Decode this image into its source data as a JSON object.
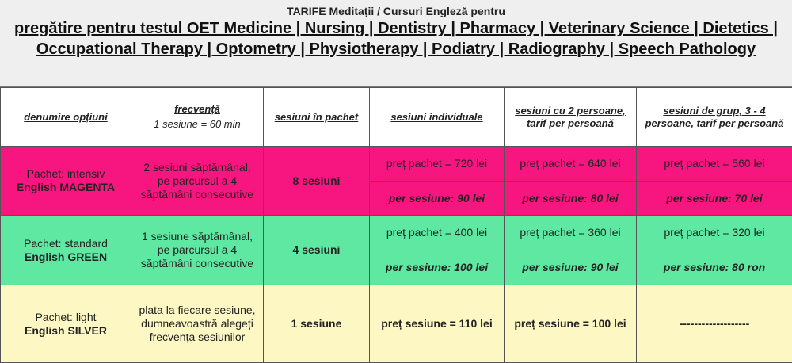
{
  "header": {
    "title": "TARIFE Meditații / Cursuri Engleză pentru",
    "subtitle": "pregătire pentru testul OET  Medicine | Nursing | Dentistry | Pharmacy | Veterinary Science | Dietetics | Occupational Therapy | Optometry | Physiotherapy | Podiatry | Radiography | Speech Pathology"
  },
  "table": {
    "columns": [
      {
        "title": "denumire opțiuni"
      },
      {
        "title": "frecvență",
        "note": "1 sesiune = 60 min"
      },
      {
        "title": "sesiuni în pachet"
      },
      {
        "title": "sesiuni individuale"
      },
      {
        "title": "sesiuni cu 2 persoane, tarif per persoană"
      },
      {
        "title": "sesiuni de grup, 3 - 4 persoane, tarif per persoană"
      }
    ],
    "rows": [
      {
        "package": "Pachet: intensiv",
        "name": "English MAGENTA",
        "color": "#f7157f",
        "frequency": "2 sesiuni săptămânal, pe parcursul a 4 săptămâni consecutive",
        "sessions": "8 sesiuni",
        "prices": [
          [
            "preț pachet = 720 lei",
            "per sesiune: 90 lei"
          ],
          [
            "preț pachet = 640 lei",
            "per sesiune: 80 lei"
          ],
          [
            "preț pachet = 560 lei",
            "per sesiune: 70 lei"
          ]
        ]
      },
      {
        "package": "Pachet: standard",
        "name": "English GREEN",
        "color": "#5ee8a2",
        "frequency": "1 sesiune săptămânal, pe parcursul a 4 săptămâni consecutive",
        "sessions": "4 sesiuni",
        "prices": [
          [
            "preț pachet = 400 lei",
            "per sesiune: 100 lei"
          ],
          [
            "preț pachet = 360 lei",
            "per sesiune: 90 lei"
          ],
          [
            "preț  pachet = 320 lei",
            "per sesiune: 80 ron"
          ]
        ]
      },
      {
        "package": "Pachet: light",
        "name": "English SILVER",
        "color": "#fdf7c4",
        "frequency": "plata la fiecare sesiune, dumneavoastră alegeți frecvența sesiunilor",
        "sessions": "1 sesiune",
        "prices": [
          [
            "preț sesiune = 110 lei"
          ],
          [
            "preț sesiune = 100 lei"
          ],
          [
            "-------------------"
          ]
        ]
      }
    ]
  }
}
